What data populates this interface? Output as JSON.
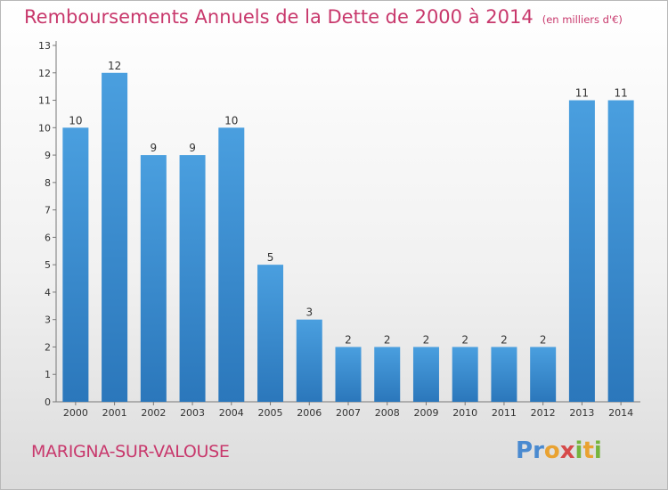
{
  "chart_data": {
    "type": "bar",
    "title": "Remboursements Annuels de la Dette de 2000 à 2014",
    "subtitle": "(en milliers d'€)",
    "categories": [
      "2000",
      "2001",
      "2002",
      "2003",
      "2004",
      "2005",
      "2006",
      "2007",
      "2008",
      "2009",
      "2010",
      "2011",
      "2012",
      "2013",
      "2014"
    ],
    "values": [
      10,
      12,
      9,
      9,
      10,
      5,
      3,
      2,
      2,
      2,
      2,
      2,
      2,
      11,
      11
    ],
    "ylim": [
      0,
      13
    ],
    "yticks": [
      0,
      1,
      2,
      3,
      4,
      5,
      6,
      7,
      8,
      9,
      10,
      11,
      12,
      13
    ],
    "grid": false,
    "bar_color": "#4a9fdf",
    "bar_color_dark": "#2b77bb"
  },
  "footer": {
    "commune": "MARIGNA-SUR-VALOUSE",
    "brand": "Proxiti",
    "brand_colors": [
      "#4a8ad0",
      "#e9a231",
      "#d64a4a",
      "#75b43d"
    ]
  }
}
